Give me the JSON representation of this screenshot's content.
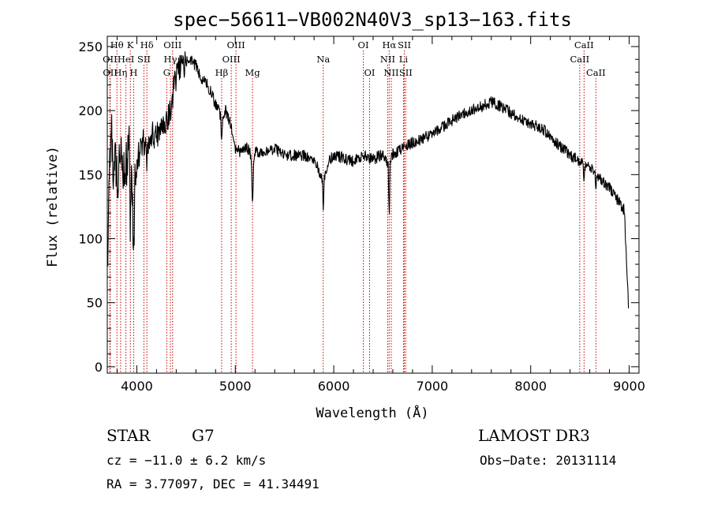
{
  "chart_data": {
    "type": "line",
    "title": "spec−56611−VB002N40V3_sp13−163.fits",
    "xlabel": "Wavelength (Å)",
    "ylabel": "Flux (relative)",
    "xlim": [
      3700,
      9100
    ],
    "ylim": [
      -5,
      258
    ],
    "xticks": [
      4000,
      5000,
      6000,
      7000,
      8000,
      9000
    ],
    "yticks": [
      0,
      50,
      100,
      150,
      200,
      250
    ],
    "line_color": "#000000",
    "marker_color": "#cc0000",
    "spectrum_profile": {
      "wavelengths": [
        3700,
        3720,
        3740,
        3760,
        3780,
        3800,
        3830,
        3860,
        3900,
        3930,
        3960,
        4000,
        4050,
        4100,
        4150,
        4200,
        4250,
        4300,
        4340,
        4380,
        4420,
        4460,
        4500,
        4550,
        4600,
        4650,
        4700,
        4750,
        4800,
        4860,
        4900,
        4950,
        5000,
        5050,
        5100,
        5150,
        5175,
        5200,
        5300,
        5400,
        5500,
        5600,
        5700,
        5800,
        5893,
        5950,
        6000,
        6100,
        6200,
        6300,
        6400,
        6500,
        6563,
        6600,
        6700,
        6800,
        6900,
        7000,
        7100,
        7200,
        7300,
        7400,
        7500,
        7600,
        7700,
        7800,
        7900,
        8000,
        8100,
        8200,
        8300,
        8400,
        8500,
        8600,
        8700,
        8800,
        8900,
        8950,
        9000
      ],
      "flux": [
        60,
        150,
        200,
        150,
        170,
        140,
        175,
        150,
        160,
        170,
        130,
        160,
        175,
        175,
        180,
        182,
        185,
        190,
        200,
        220,
        232,
        235,
        238,
        240,
        235,
        225,
        222,
        215,
        205,
        195,
        200,
        190,
        170,
        168,
        172,
        168,
        150,
        168,
        168,
        170,
        165,
        165,
        165,
        163,
        145,
        160,
        165,
        163,
        160,
        165,
        162,
        166,
        155,
        166,
        170,
        175,
        178,
        182,
        187,
        192,
        197,
        200,
        203,
        207,
        203,
        198,
        193,
        190,
        187,
        180,
        172,
        165,
        160,
        155,
        148,
        140,
        128,
        122,
        35
      ],
      "absorption_dips": [
        {
          "wavelength": 3934,
          "depth": 70
        },
        {
          "wavelength": 3968,
          "depth": 60
        },
        {
          "wavelength": 4101,
          "depth": 25
        },
        {
          "wavelength": 4861,
          "depth": 22
        },
        {
          "wavelength": 5175,
          "depth": 25
        },
        {
          "wavelength": 5893,
          "depth": 25
        },
        {
          "wavelength": 6563,
          "depth": 40
        },
        {
          "wavelength": 8542,
          "depth": 15
        },
        {
          "wavelength": 8662,
          "depth": 12
        }
      ]
    },
    "spectral_lines": [
      {
        "label": "Hθ",
        "wavelength": 3798,
        "row": 0
      },
      {
        "label": "OII",
        "wavelength": 3727,
        "row": 1
      },
      {
        "label": "OII",
        "wavelength": 3729,
        "row": 2
      },
      {
        "label": "Hη",
        "wavelength": 3835,
        "row": 2
      },
      {
        "label": "HeI",
        "wavelength": 3889,
        "row": 1
      },
      {
        "label": "K",
        "wavelength": 3934,
        "row": 0
      },
      {
        "label": "H",
        "wavelength": 3968,
        "row": 2
      },
      {
        "label": "SII",
        "wavelength": 4072,
        "row": 1
      },
      {
        "label": "Hδ",
        "wavelength": 4102,
        "row": 0
      },
      {
        "label": "OIII",
        "wavelength": 4363,
        "row": 0
      },
      {
        "label": "Hγ",
        "wavelength": 4341,
        "row": 1
      },
      {
        "label": "G",
        "wavelength": 4304,
        "row": 2
      },
      {
        "label": "OIII",
        "wavelength": 5007,
        "row": 0
      },
      {
        "label": "OIII",
        "wavelength": 4959,
        "row": 1
      },
      {
        "label": "Hβ",
        "wavelength": 4861,
        "row": 2
      },
      {
        "label": "Mg",
        "wavelength": 5175,
        "row": 2
      },
      {
        "label": "Na",
        "wavelength": 5893,
        "row": 1
      },
      {
        "label": "OI",
        "wavelength": 6300,
        "row": 0
      },
      {
        "label": "OI",
        "wavelength": 6364,
        "row": 2
      },
      {
        "label": "Hα",
        "wavelength": 6563,
        "row": 0
      },
      {
        "label": "NII",
        "wavelength": 6548,
        "row": 1
      },
      {
        "label": "NII",
        "wavelength": 6584,
        "row": 2
      },
      {
        "label": "SII",
        "wavelength": 6717,
        "row": 0
      },
      {
        "label": "Li",
        "wavelength": 6708,
        "row": 1
      },
      {
        "label": "SII",
        "wavelength": 6731,
        "row": 2
      },
      {
        "label": "CaII",
        "wavelength": 8542,
        "row": 0
      },
      {
        "label": "CaII",
        "wavelength": 8498,
        "row": 1
      },
      {
        "label": "CaII",
        "wavelength": 8662,
        "row": 2
      }
    ]
  },
  "info": {
    "object_class": "STAR",
    "subclass": "G7",
    "survey": "LAMOST DR3",
    "redshift": "cz = −11.0 ± 6.2 km/s",
    "obs_date": "Obs−Date: 20131114",
    "coords": "RA =   3.77097, DEC =  41.34491"
  }
}
